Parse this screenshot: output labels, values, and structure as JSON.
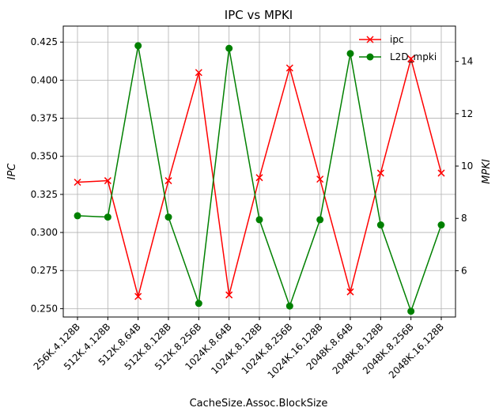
{
  "chart_data": {
    "type": "line",
    "title": "IPC vs MPKI",
    "xlabel": "CacheSize.Assoc.BlockSize",
    "ylabel_left": "IPC",
    "ylabel_right": "MPKI",
    "categories": [
      "256K.4.128B",
      "512K.4.128B",
      "512K.8.64B",
      "512K.8.128B",
      "512K.8.256B",
      "1024K.8.64B",
      "1024K.8.128B",
      "1024K.8.256B",
      "1024K.16.128B",
      "2048K.8.64B",
      "2048K.8.128B",
      "2048K.8.256B",
      "2048K.16.128B"
    ],
    "left_axis": {
      "ylim": [
        0.2445,
        0.4355
      ],
      "ticks": [
        0.25,
        0.275,
        0.3,
        0.325,
        0.35,
        0.375,
        0.4,
        0.425
      ],
      "tick_labels": [
        "0.250",
        "0.275",
        "0.300",
        "0.325",
        "0.350",
        "0.375",
        "0.400",
        "0.425"
      ]
    },
    "right_axis": {
      "ylim": [
        4.23,
        15.35
      ],
      "ticks": [
        6,
        8,
        10,
        12,
        14
      ],
      "tick_labels": [
        "6",
        "8",
        "10",
        "12",
        "14"
      ]
    },
    "grid": true,
    "legend_position": "top-right",
    "series": [
      {
        "name": "ipc",
        "axis": "left",
        "color": "#ff0000",
        "marker": "x",
        "values": [
          0.333,
          0.334,
          0.258,
          0.334,
          0.405,
          0.259,
          0.336,
          0.408,
          0.335,
          0.261,
          0.339,
          0.414,
          0.339
        ]
      },
      {
        "name": "L2D_mpki",
        "axis": "right",
        "color": "#008000",
        "marker": "o",
        "values": [
          8.1,
          8.05,
          14.6,
          8.05,
          4.75,
          14.5,
          7.95,
          4.65,
          7.95,
          14.3,
          7.75,
          4.45,
          7.75
        ]
      }
    ]
  }
}
